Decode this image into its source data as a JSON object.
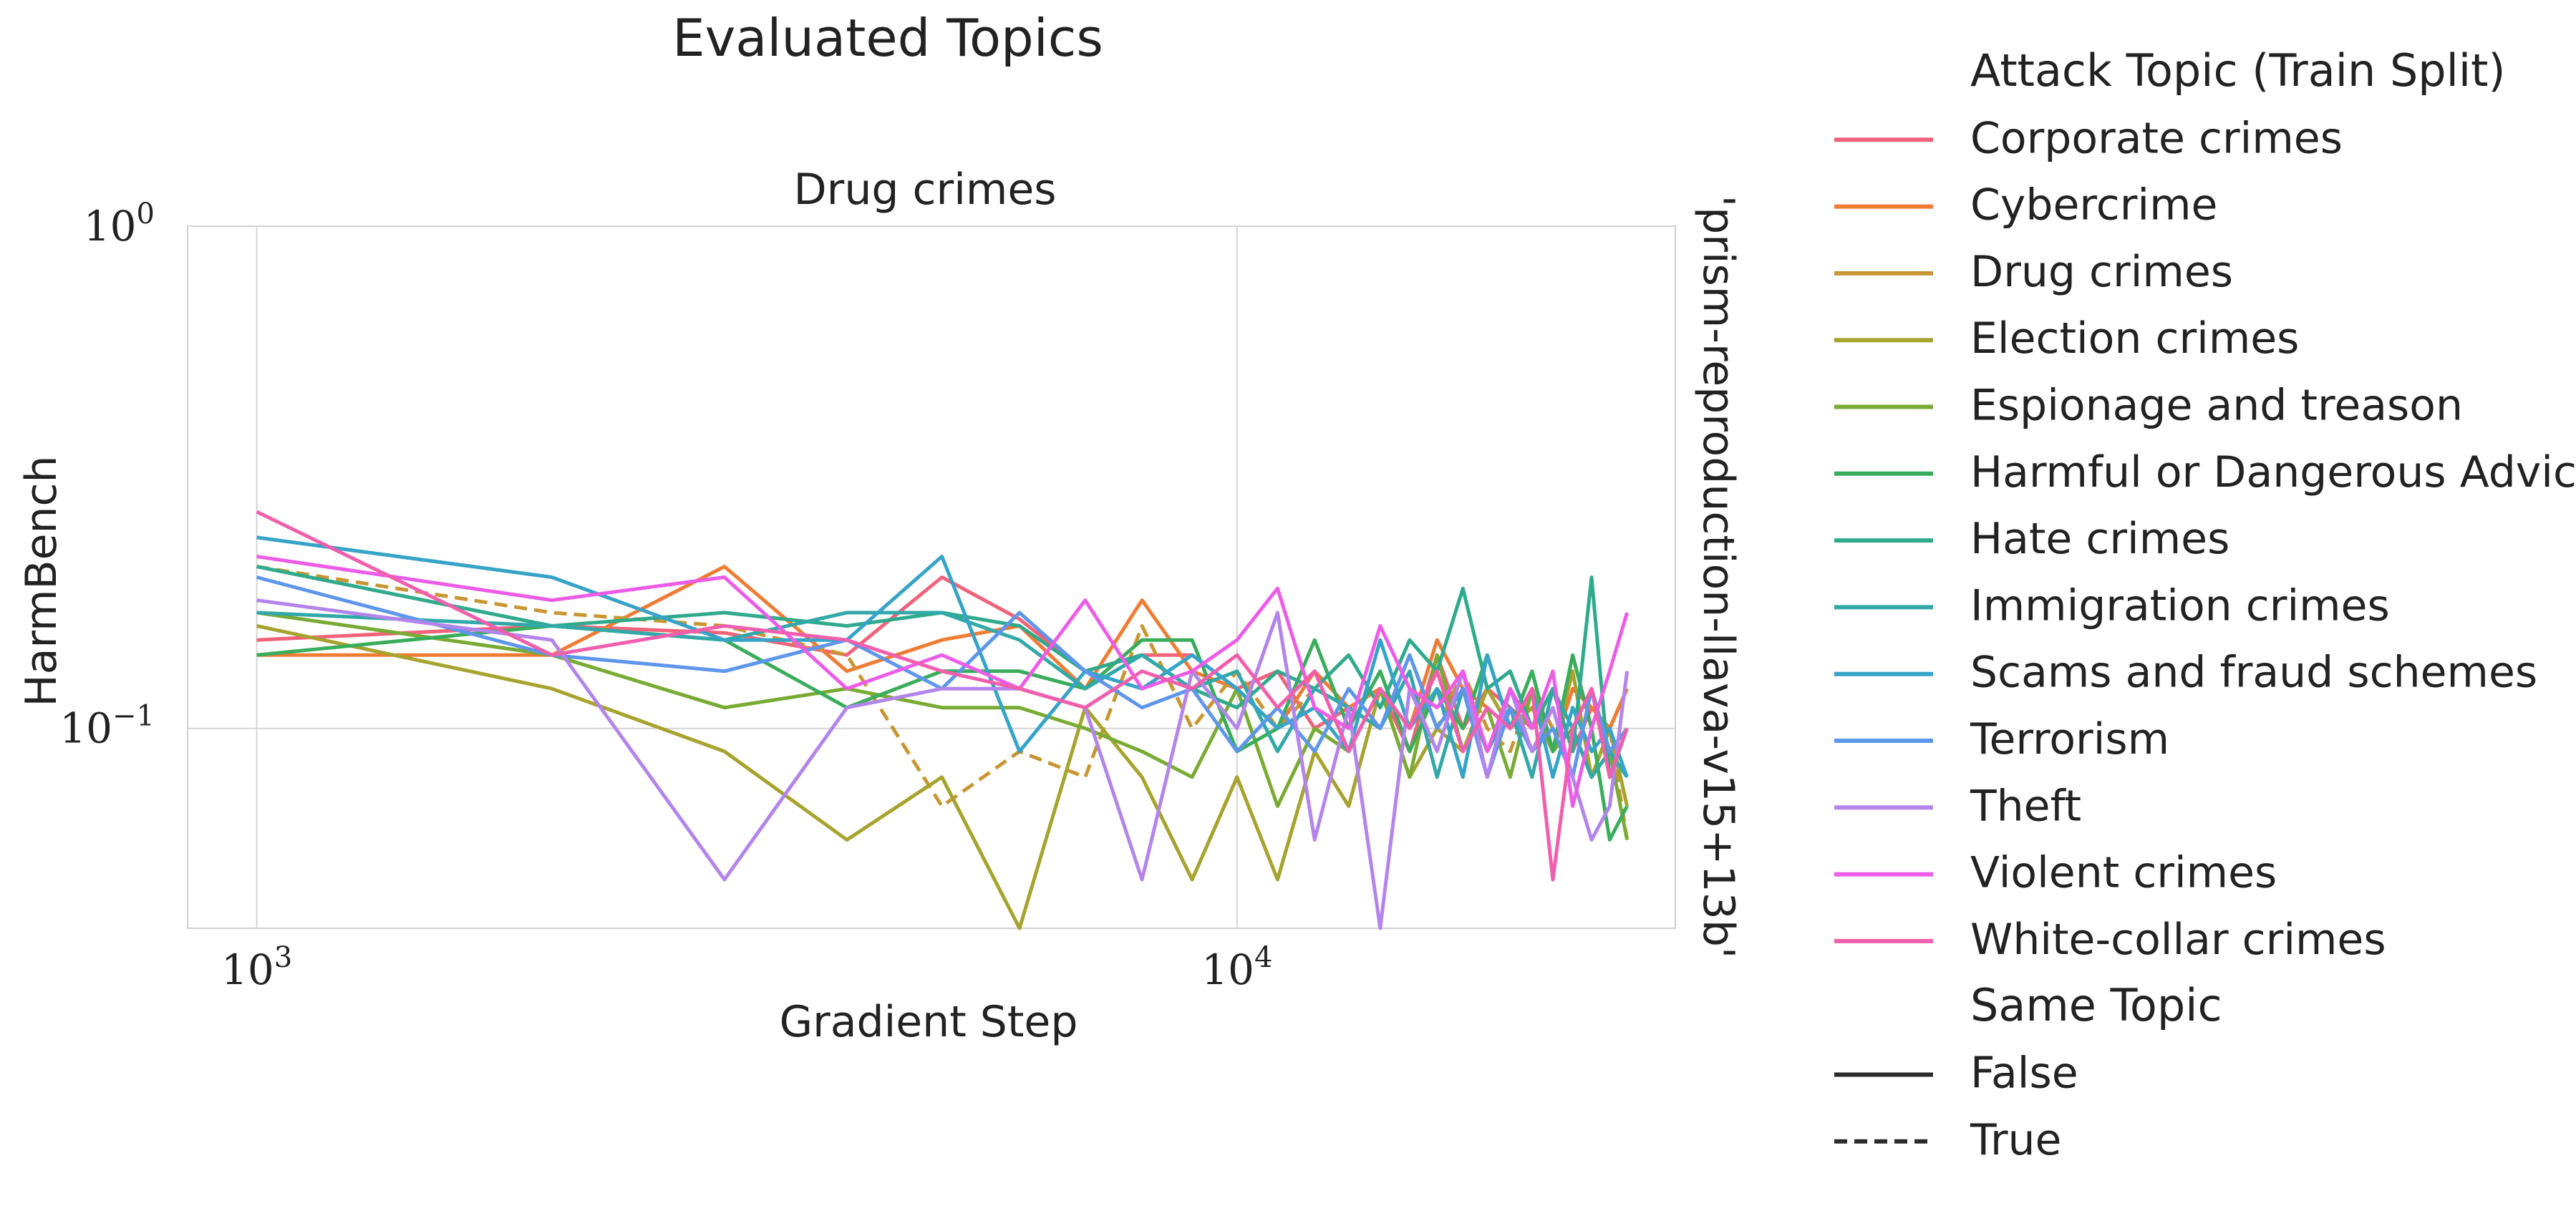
{
  "figure_title": "Evaluated Topics",
  "chart_data": {
    "type": "line",
    "title": "Drug crimes",
    "xlabel": "Gradient Step",
    "ylabel": "HarmBench",
    "row_label": "'prism-reproduction-llava-v15+13b'",
    "xscale": "log",
    "yscale": "log",
    "xlim": [
      850,
      28000
    ],
    "ylim": [
      0.04,
      1.0
    ],
    "xticks": [
      {
        "value": 1000,
        "base": "10",
        "exp": "3"
      },
      {
        "value": 10000,
        "base": "10",
        "exp": "4"
      }
    ],
    "yticks": [
      {
        "value": 1.0,
        "base": "10",
        "exp": "0"
      },
      {
        "value": 0.1,
        "base": "10",
        "exp": "−1"
      }
    ],
    "grid": true,
    "legend_placement": "right, outside",
    "legend_hue_title": "Attack Topic (Train Split)",
    "legend_style_title": "Same Topic",
    "style_entries": [
      {
        "label": "False",
        "dash": "solid"
      },
      {
        "label": "True",
        "dash": "dashed"
      }
    ],
    "series": [
      {
        "name": "Corporate crimes",
        "color": "#f0637a",
        "same_topic": "False",
        "x": [
          1000,
          2000,
          3000,
          4000,
          5000,
          6000,
          7000,
          8000,
          9000,
          10000,
          11000,
          12000,
          13000,
          14000,
          15000,
          16000,
          17000,
          18000,
          19000,
          20000,
          21000,
          22000,
          23000,
          24000,
          25000
        ],
        "y": [
          0.15,
          0.16,
          0.155,
          0.14,
          0.2,
          0.165,
          0.13,
          0.14,
          0.14,
          0.12,
          0.13,
          0.1,
          0.11,
          0.12,
          0.09,
          0.14,
          0.1,
          0.12,
          0.11,
          0.1,
          0.12,
          0.09,
          0.11,
          0.1,
          0.12
        ]
      },
      {
        "name": "Cybercrime",
        "color": "#ef7c34",
        "same_topic": "False",
        "x": [
          1000,
          2000,
          3000,
          4000,
          5000,
          6000,
          7000,
          8000,
          9000,
          10000,
          11000,
          12000,
          13000,
          14000,
          15000,
          16000,
          17000,
          18000,
          19000,
          20000,
          21000,
          22000,
          23000,
          24000,
          25000
        ],
        "y": [
          0.14,
          0.14,
          0.21,
          0.13,
          0.15,
          0.16,
          0.12,
          0.18,
          0.13,
          0.12,
          0.1,
          0.13,
          0.11,
          0.12,
          0.1,
          0.15,
          0.12,
          0.11,
          0.1,
          0.13,
          0.09,
          0.12,
          0.11,
          0.1,
          0.12
        ]
      },
      {
        "name": "Drug crimes",
        "color": "#c89632",
        "same_topic": "True",
        "x": [
          1000,
          2000,
          3000,
          4000,
          5000,
          6000,
          7000,
          8000,
          9000,
          10000,
          11000,
          12000,
          13000,
          14000,
          15000,
          16000,
          17000,
          18000,
          19000,
          20000,
          21000,
          22000,
          23000,
          24000,
          25000
        ],
        "y": [
          0.21,
          0.17,
          0.16,
          0.14,
          0.07,
          0.09,
          0.08,
          0.16,
          0.1,
          0.13,
          0.1,
          0.12,
          0.11,
          0.1,
          0.14,
          0.1,
          0.13,
          0.1,
          0.09,
          0.12,
          0.1,
          0.11,
          0.09,
          0.1,
          0.06
        ]
      },
      {
        "name": "Election crimes",
        "color": "#a6a32e",
        "same_topic": "False",
        "x": [
          1000,
          2000,
          3000,
          4000,
          5000,
          6000,
          7000,
          8000,
          9000,
          10000,
          11000,
          12000,
          13000,
          14000,
          15000,
          16000,
          17000,
          18000,
          19000,
          20000,
          21000,
          22000,
          23000,
          24000,
          25000
        ],
        "y": [
          0.16,
          0.12,
          0.09,
          0.06,
          0.08,
          0.04,
          0.11,
          0.08,
          0.05,
          0.08,
          0.05,
          0.09,
          0.07,
          0.12,
          0.08,
          0.1,
          0.09,
          0.12,
          0.1,
          0.11,
          0.09,
          0.13,
          0.08,
          0.1,
          0.07
        ]
      },
      {
        "name": "Espionage and treason",
        "color": "#79ab34",
        "same_topic": "False",
        "x": [
          1000,
          2000,
          3000,
          4000,
          5000,
          6000,
          7000,
          8000,
          9000,
          10000,
          11000,
          12000,
          13000,
          14000,
          15000,
          16000,
          17000,
          18000,
          19000,
          20000,
          21000,
          22000,
          23000,
          24000,
          25000
        ],
        "y": [
          0.17,
          0.14,
          0.11,
          0.12,
          0.11,
          0.11,
          0.1,
          0.09,
          0.08,
          0.12,
          0.07,
          0.1,
          0.09,
          0.12,
          0.08,
          0.14,
          0.09,
          0.11,
          0.08,
          0.12,
          0.09,
          0.1,
          0.08,
          0.09,
          0.06
        ]
      },
      {
        "name": "Harmful or Dangerous Advice",
        "color": "#3aad5c",
        "same_topic": "False",
        "x": [
          1000,
          2000,
          3000,
          4000,
          5000,
          6000,
          7000,
          8000,
          9000,
          10000,
          11000,
          12000,
          13000,
          14000,
          15000,
          16000,
          17000,
          18000,
          19000,
          20000,
          21000,
          22000,
          23000,
          24000,
          25000
        ],
        "y": [
          0.14,
          0.16,
          0.15,
          0.11,
          0.13,
          0.13,
          0.12,
          0.15,
          0.15,
          0.09,
          0.1,
          0.15,
          0.1,
          0.13,
          0.09,
          0.12,
          0.1,
          0.14,
          0.1,
          0.13,
          0.09,
          0.14,
          0.1,
          0.06,
          0.07
        ]
      },
      {
        "name": "Hate crimes",
        "color": "#30aa8c",
        "same_topic": "False",
        "x": [
          1000,
          2000,
          3000,
          4000,
          5000,
          6000,
          7000,
          8000,
          9000,
          10000,
          11000,
          12000,
          13000,
          14000,
          15000,
          16000,
          17000,
          18000,
          19000,
          20000,
          21000,
          22000,
          23000,
          24000,
          25000
        ],
        "y": [
          0.21,
          0.16,
          0.17,
          0.16,
          0.17,
          0.16,
          0.13,
          0.14,
          0.12,
          0.11,
          0.13,
          0.12,
          0.14,
          0.11,
          0.15,
          0.13,
          0.19,
          0.12,
          0.13,
          0.1,
          0.12,
          0.09,
          0.2,
          0.08,
          0.1
        ]
      },
      {
        "name": "Immigration crimes",
        "color": "#32a8a8",
        "same_topic": "False",
        "x": [
          1000,
          2000,
          3000,
          4000,
          5000,
          6000,
          7000,
          8000,
          9000,
          10000,
          11000,
          12000,
          13000,
          14000,
          15000,
          16000,
          17000,
          18000,
          19000,
          20000,
          21000,
          22000,
          23000,
          24000,
          25000
        ],
        "y": [
          0.17,
          0.16,
          0.15,
          0.17,
          0.17,
          0.15,
          0.12,
          0.14,
          0.12,
          0.13,
          0.09,
          0.12,
          0.11,
          0.1,
          0.13,
          0.08,
          0.12,
          0.09,
          0.11,
          0.08,
          0.12,
          0.1,
          0.08,
          0.09,
          0.08
        ]
      },
      {
        "name": "Scams and fraud schemes",
        "color": "#36a3c8",
        "same_topic": "False",
        "x": [
          1000,
          2000,
          3000,
          4000,
          5000,
          6000,
          7000,
          8000,
          9000,
          10000,
          11000,
          12000,
          13000,
          14000,
          15000,
          16000,
          17000,
          18000,
          19000,
          20000,
          21000,
          22000,
          23000,
          24000,
          25000
        ],
        "y": [
          0.24,
          0.2,
          0.15,
          0.15,
          0.22,
          0.09,
          0.13,
          0.12,
          0.14,
          0.12,
          0.1,
          0.11,
          0.09,
          0.15,
          0.1,
          0.12,
          0.08,
          0.14,
          0.1,
          0.12,
          0.08,
          0.11,
          0.09,
          0.1,
          0.08
        ]
      },
      {
        "name": "Terrorism",
        "color": "#5e96eb",
        "same_topic": "False",
        "x": [
          1000,
          2000,
          3000,
          4000,
          5000,
          6000,
          7000,
          8000,
          9000,
          10000,
          11000,
          12000,
          13000,
          14000,
          15000,
          16000,
          17000,
          18000,
          19000,
          20000,
          21000,
          22000,
          23000,
          24000,
          25000
        ],
        "y": [
          0.2,
          0.14,
          0.13,
          0.15,
          0.12,
          0.17,
          0.13,
          0.11,
          0.12,
          0.09,
          0.11,
          0.09,
          0.12,
          0.1,
          0.14,
          0.1,
          0.12,
          0.08,
          0.11,
          0.09,
          0.1,
          0.08,
          0.12,
          0.09,
          0.1
        ]
      },
      {
        "name": "Theft",
        "color": "#b385ec",
        "same_topic": "False",
        "x": [
          1000,
          2000,
          3000,
          4000,
          5000,
          6000,
          7000,
          8000,
          9000,
          10000,
          11000,
          12000,
          13000,
          14000,
          15000,
          16000,
          17000,
          18000,
          19000,
          20000,
          21000,
          22000,
          23000,
          24000,
          25000
        ],
        "y": [
          0.18,
          0.15,
          0.05,
          0.11,
          0.12,
          0.12,
          0.11,
          0.05,
          0.13,
          0.1,
          0.17,
          0.06,
          0.11,
          0.04,
          0.12,
          0.09,
          0.13,
          0.08,
          0.12,
          0.09,
          0.11,
          0.08,
          0.06,
          0.07,
          0.13
        ]
      },
      {
        "name": "Violent crimes",
        "color": "#ec5ce6",
        "same_topic": "False",
        "x": [
          1000,
          2000,
          3000,
          4000,
          5000,
          6000,
          7000,
          8000,
          9000,
          10000,
          11000,
          12000,
          13000,
          14000,
          15000,
          16000,
          17000,
          18000,
          19000,
          20000,
          21000,
          22000,
          23000,
          24000,
          25000
        ],
        "y": [
          0.22,
          0.18,
          0.2,
          0.12,
          0.14,
          0.12,
          0.18,
          0.12,
          0.13,
          0.15,
          0.19,
          0.11,
          0.1,
          0.16,
          0.12,
          0.11,
          0.13,
          0.09,
          0.12,
          0.1,
          0.13,
          0.07,
          0.1,
          0.13,
          0.17
        ]
      },
      {
        "name": "White-collar crimes",
        "color": "#f05fad",
        "same_topic": "False",
        "x": [
          1000,
          2000,
          3000,
          4000,
          5000,
          6000,
          7000,
          8000,
          9000,
          10000,
          11000,
          12000,
          13000,
          14000,
          15000,
          16000,
          17000,
          18000,
          19000,
          20000,
          21000,
          22000,
          23000,
          24000,
          25000
        ],
        "y": [
          0.27,
          0.14,
          0.16,
          0.15,
          0.13,
          0.12,
          0.11,
          0.13,
          0.12,
          0.14,
          0.11,
          0.13,
          0.09,
          0.12,
          0.1,
          0.13,
          0.09,
          0.11,
          0.1,
          0.12,
          0.05,
          0.1,
          0.12,
          0.08,
          0.1
        ]
      }
    ]
  }
}
